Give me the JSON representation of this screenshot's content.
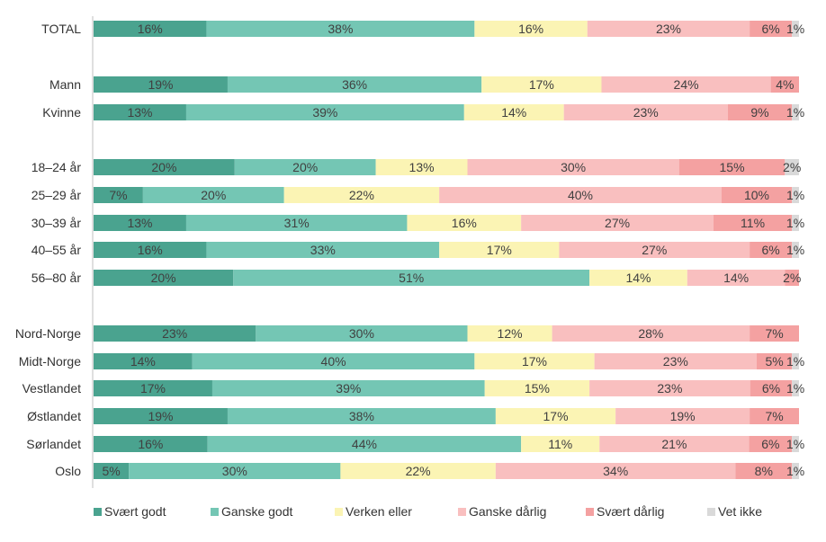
{
  "chart_data": {
    "type": "bar",
    "orientation": "horizontal",
    "stacked": "100%",
    "categories": [
      "TOTAL",
      "Mann",
      "Kvinne",
      "18–24 år",
      "25–29 år",
      "30–39 år",
      "40–55 år",
      "56–80 år",
      "Nord-Norge",
      "Midt-Norge",
      "Vestlandet",
      "Østlandet",
      "Sørlandet",
      "Oslo"
    ],
    "series": [
      {
        "name": "Svært godt",
        "color": "#4aa38f",
        "values": [
          16,
          19,
          13,
          20,
          7,
          13,
          16,
          20,
          23,
          14,
          17,
          19,
          16,
          5
        ]
      },
      {
        "name": "Ganske godt",
        "color": "#74c6b4",
        "values": [
          38,
          36,
          39,
          20,
          20,
          31,
          33,
          51,
          30,
          40,
          39,
          38,
          44,
          30
        ]
      },
      {
        "name": "Verken eller",
        "color": "#fbf4b4",
        "values": [
          16,
          17,
          14,
          13,
          22,
          16,
          17,
          14,
          12,
          17,
          15,
          17,
          11,
          22
        ]
      },
      {
        "name": "Ganske dårlig",
        "color": "#f9bfbf",
        "values": [
          23,
          24,
          23,
          30,
          40,
          27,
          27,
          14,
          28,
          23,
          23,
          19,
          21,
          34
        ]
      },
      {
        "name": "Svært dårlig",
        "color": "#f4a1a1",
        "values": [
          6,
          4,
          9,
          15,
          10,
          11,
          6,
          2,
          7,
          5,
          6,
          7,
          6,
          8
        ]
      },
      {
        "name": "Vet ikke",
        "color": "#d9d9d9",
        "values": [
          1,
          0,
          1,
          2,
          1,
          1,
          1,
          0,
          0,
          1,
          1,
          0,
          1,
          1
        ]
      }
    ],
    "xlim": [
      0,
      100
    ],
    "legend": "bottom",
    "grid": false
  }
}
